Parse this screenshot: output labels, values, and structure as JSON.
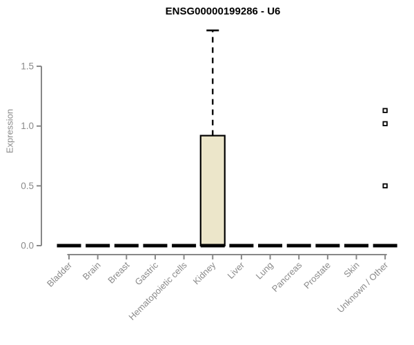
{
  "chart_data": {
    "type": "boxplot",
    "title": "ENSG00000199286 - U6",
    "ylabel": "Expression",
    "xlabel": "",
    "ylim": [
      0,
      1.8
    ],
    "yticks": [
      0,
      0.5,
      1.0,
      1.5
    ],
    "grid": false,
    "legend": false,
    "categories": [
      "Bladder",
      "Brain",
      "Breast",
      "Gastric",
      "Hematopoietic cells",
      "Kidney",
      "Liver",
      "Lung",
      "Pancreas",
      "Prostate",
      "Skin",
      "Unknown / Other"
    ],
    "series": [
      {
        "category": "Bladder",
        "median": 0,
        "q1": 0,
        "q3": 0,
        "whisker_low": 0,
        "whisker_high": 0,
        "outliers": []
      },
      {
        "category": "Brain",
        "median": 0,
        "q1": 0,
        "q3": 0,
        "whisker_low": 0,
        "whisker_high": 0,
        "outliers": []
      },
      {
        "category": "Breast",
        "median": 0,
        "q1": 0,
        "q3": 0,
        "whisker_low": 0,
        "whisker_high": 0,
        "outliers": []
      },
      {
        "category": "Gastric",
        "median": 0,
        "q1": 0,
        "q3": 0,
        "whisker_low": 0,
        "whisker_high": 0,
        "outliers": []
      },
      {
        "category": "Hematopoietic cells",
        "median": 0,
        "q1": 0,
        "q3": 0,
        "whisker_low": 0,
        "whisker_high": 0,
        "outliers": []
      },
      {
        "category": "Kidney",
        "median": 0,
        "q1": 0,
        "q3": 0.92,
        "whisker_low": 0,
        "whisker_high": 1.8,
        "outliers": []
      },
      {
        "category": "Liver",
        "median": 0,
        "q1": 0,
        "q3": 0,
        "whisker_low": 0,
        "whisker_high": 0,
        "outliers": []
      },
      {
        "category": "Lung",
        "median": 0,
        "q1": 0,
        "q3": 0,
        "whisker_low": 0,
        "whisker_high": 0,
        "outliers": []
      },
      {
        "category": "Pancreas",
        "median": 0,
        "q1": 0,
        "q3": 0,
        "whisker_low": 0,
        "whisker_high": 0,
        "outliers": []
      },
      {
        "category": "Prostate",
        "median": 0,
        "q1": 0,
        "q3": 0,
        "whisker_low": 0,
        "whisker_high": 0,
        "outliers": []
      },
      {
        "category": "Skin",
        "median": 0,
        "q1": 0,
        "q3": 0,
        "whisker_low": 0,
        "whisker_high": 0,
        "outliers": []
      },
      {
        "category": "Unknown / Other",
        "median": 0,
        "q1": 0,
        "q3": 0,
        "whisker_low": 0,
        "whisker_high": 0,
        "outliers": [
          1.13,
          1.02,
          0.5
        ]
      }
    ],
    "colors": {
      "background": "#ffffff",
      "title": "#000000",
      "axis": "#878787",
      "tick_label": "#8a8a8a",
      "box_fill": "#ece6ca",
      "box_stroke": "#000000",
      "outlier_fill": "#ffffff",
      "outlier_stroke": "#000000"
    }
  }
}
